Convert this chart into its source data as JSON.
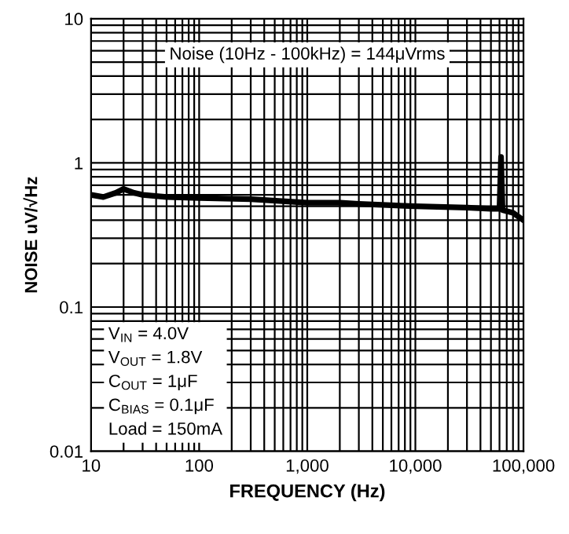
{
  "chart_data": {
    "type": "line",
    "xlabel": "FREQUENCY (Hz)",
    "ylabel": "NOISE uV/√Hz",
    "log": "xy",
    "x": [
      10,
      13,
      17,
      20,
      25,
      30,
      50,
      100,
      300,
      1000,
      2000,
      3000,
      10000,
      30000,
      50000,
      60000,
      62000,
      64000,
      80000,
      100000
    ],
    "series": [
      {
        "color": "#000000",
        "values": [
          0.6,
          0.58,
          0.62,
          0.66,
          0.62,
          0.6,
          0.58,
          0.57,
          0.56,
          0.53,
          0.53,
          0.52,
          0.5,
          0.49,
          0.48,
          0.48,
          1.1,
          0.47,
          0.45,
          0.4
        ]
      }
    ],
    "xlim": [
      10,
      100000
    ],
    "ylim": [
      0.01,
      10
    ],
    "xticks": [
      {
        "value": 10,
        "label": "10"
      },
      {
        "value": 100,
        "label": "100"
      },
      {
        "value": 1000,
        "label": "1,000"
      },
      {
        "value": 10000,
        "label": "10,000"
      },
      {
        "value": 100000,
        "label": "100,000"
      }
    ],
    "yticks": [
      0.01,
      0.1,
      1,
      10
    ],
    "grid": true,
    "line_style": "solid",
    "marker": "none",
    "annotations": [
      "Noise (10Hz - 100kHz) = 144μVrms",
      "V$_{IN}$ = 4.0V\nV$_{OUT}$ = 1.8V\nC$_{OUT}$ = 1μF\nC$_{BIAS}$ = 0.1μF\nLoad = 150mA"
    ]
  }
}
